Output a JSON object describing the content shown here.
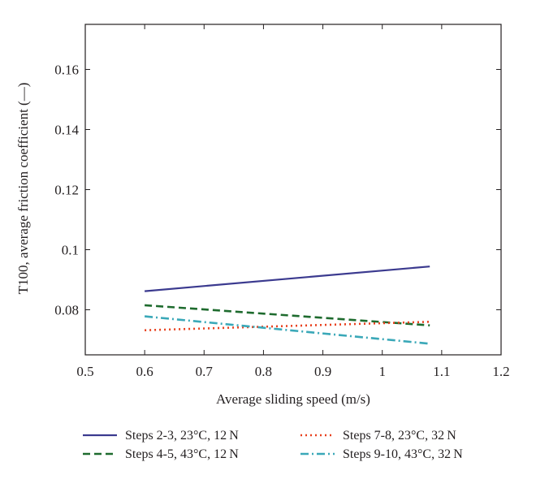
{
  "chart_data": {
    "type": "line",
    "title": "",
    "xlabel": "Average sliding speed (m/s)",
    "ylabel": "T100, average friction coefficient (—)",
    "xlim": [
      0.5,
      1.2
    ],
    "ylim": [
      0.065,
      0.175
    ],
    "xticks": [
      0.5,
      0.6,
      0.7,
      0.8,
      0.9,
      1,
      1.1,
      1.2
    ],
    "xtick_labels": [
      "0.5",
      "0.6",
      "0.7",
      "0.8",
      "0.9",
      "1",
      "1.1",
      "1.2"
    ],
    "yticks": [
      0.08,
      0.1,
      0.12,
      0.14,
      0.16
    ],
    "ytick_labels": [
      "0.08",
      "0.1",
      "0.12",
      "0.14",
      "0.16"
    ],
    "grid": false,
    "legend_position": "bottom",
    "series": [
      {
        "name": "Steps 2-3, 23°C, 12 N",
        "color": "#3b3a8f",
        "dash": "solid",
        "x": [
          0.6,
          1.08
        ],
        "y": [
          0.0862,
          0.0944
        ]
      },
      {
        "name": "Steps 4-5, 43°C, 12 N",
        "color": "#1e6b2e",
        "dash": "dashed",
        "x": [
          0.6,
          1.08
        ],
        "y": [
          0.0815,
          0.0748
        ]
      },
      {
        "name": "Steps 7-8, 23°C, 32 N",
        "color": "#e8401e",
        "dash": "dotted",
        "x": [
          0.6,
          1.08
        ],
        "y": [
          0.0732,
          0.076
        ]
      },
      {
        "name": "Steps 9-10, 43°C, 32 N",
        "color": "#3aa8b8",
        "dash": "dashdot",
        "x": [
          0.6,
          1.08
        ],
        "y": [
          0.0778,
          0.0687
        ]
      }
    ]
  }
}
